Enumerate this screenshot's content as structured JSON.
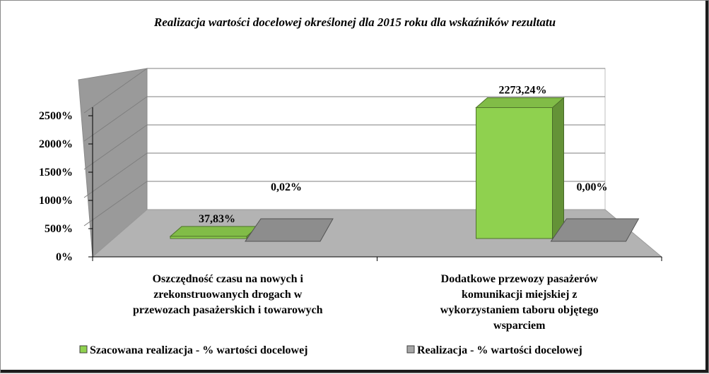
{
  "chart_data": {
    "type": "bar",
    "title": "Realizacja wartości docelowej  określonej dla 2015 roku dla wskaźników rezultatu",
    "categories": [
      [
        "Oszczędność czasu na nowych i",
        "zrekonstruowanych drogach w",
        "przewozach pasażerskich i towarowych"
      ],
      [
        "Dodatkowe przewozy pasażerów",
        "komunikacji miejskiej z",
        "wykorzystaniem taboru objętego",
        "wsparciem"
      ]
    ],
    "series": [
      {
        "name": "Szacowana realizacja - % wartości docelowej",
        "values": [
          37.83,
          2273.24
        ],
        "labels": [
          "37,83%",
          "2273,24%"
        ],
        "color": "#8fd14f"
      },
      {
        "name": "Realizacja - % wartości docelowej",
        "values": [
          0.02,
          0.0
        ],
        "labels": [
          "0,02%",
          "0,00%"
        ],
        "color": "#a6a6a6"
      }
    ],
    "ylim": [
      0,
      2500
    ],
    "yticks": [
      "0%",
      "500%",
      "1000%",
      "1500%",
      "2000%",
      "2500%"
    ],
    "grid": true,
    "legend_position": "bottom",
    "style": "3d-clustered-column"
  }
}
